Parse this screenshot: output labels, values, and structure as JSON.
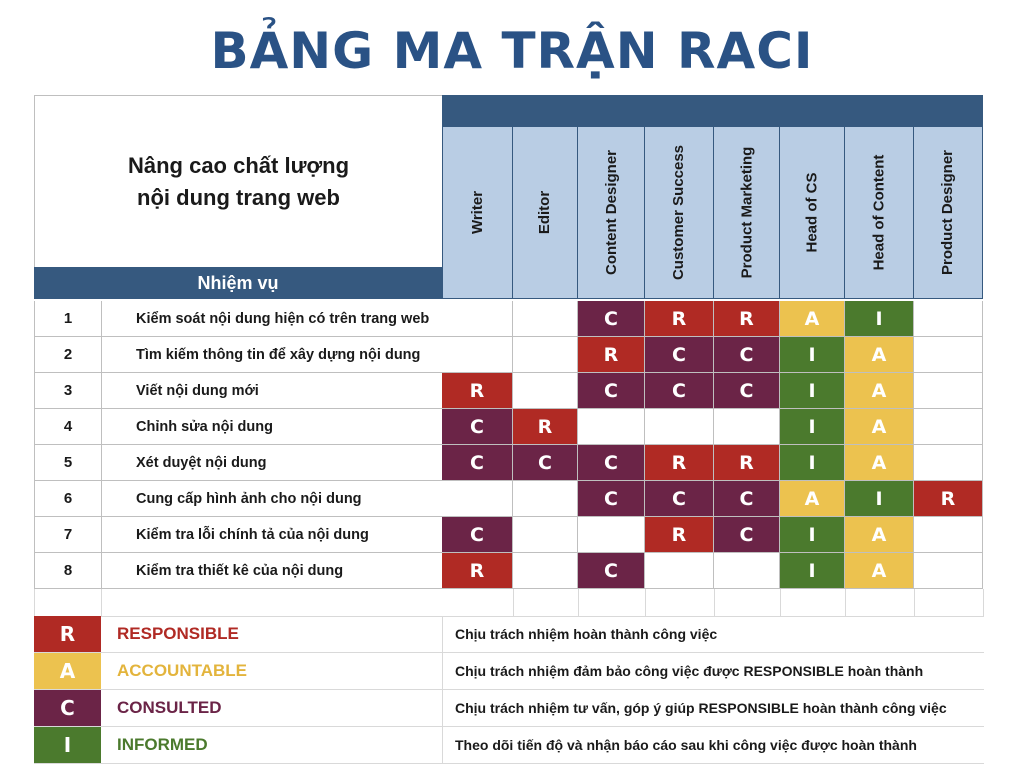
{
  "title": "BẢNG MA TRẬN RACI",
  "project": {
    "line1": "Nâng cao chất lượng",
    "line2": "nội dung trang web"
  },
  "task_header": "Nhiệm vụ",
  "roles": [
    "Writer",
    "Editor",
    "Content Designer",
    "Customer Success",
    "Product Marketing",
    "Head of CS",
    "Head of Content",
    "Product Designer"
  ],
  "tasks": [
    {
      "no": "1",
      "name": "Kiểm soát nội dung hiện có trên trang web",
      "cells": [
        "",
        "",
        "C",
        "R",
        "R",
        "A",
        "I",
        ""
      ]
    },
    {
      "no": "2",
      "name": "Tìm kiếm thông tin để xây dựng nội dung",
      "cells": [
        "",
        "",
        "R",
        "C",
        "C",
        "I",
        "A",
        ""
      ]
    },
    {
      "no": "3",
      "name": "Viết nội dung mới",
      "cells": [
        "R",
        "",
        "C",
        "C",
        "C",
        "I",
        "A",
        ""
      ]
    },
    {
      "no": "4",
      "name": "Chỉnh sửa nội dung",
      "cells": [
        "C",
        "R",
        "",
        "",
        "",
        "I",
        "A",
        ""
      ]
    },
    {
      "no": "5",
      "name": "Xét duyệt nội dung",
      "cells": [
        "C",
        "C",
        "C",
        "R",
        "R",
        "I",
        "A",
        ""
      ]
    },
    {
      "no": "6",
      "name": "Cung cấp hình ảnh cho nội dung",
      "cells": [
        "",
        "",
        "C",
        "C",
        "C",
        "A",
        "I",
        "R"
      ]
    },
    {
      "no": "7",
      "name": "Kiểm tra lỗi chính tả của nội dung",
      "cells": [
        "C",
        "",
        "",
        "R",
        "C",
        "I",
        "A",
        ""
      ]
    },
    {
      "no": "8",
      "name": "Kiểm tra thiết kê của nội dung",
      "cells": [
        "R",
        "",
        "C",
        "",
        "",
        "I",
        "A",
        ""
      ]
    }
  ],
  "legend": [
    {
      "letter": "R",
      "name": "RESPONSIBLE",
      "color": "#b02a24",
      "desc": "Chịu trách nhiệm hoàn thành công việc"
    },
    {
      "letter": "A",
      "name": "ACCOUNTABLE",
      "color": "#ecc24f",
      "desc": "Chịu trách nhiệm đảm bảo công việc được RESPONSIBLE hoàn thành"
    },
    {
      "letter": "C",
      "name": "CONSULTED",
      "color": "#6b2447",
      "desc": "Chịu trách nhiệm tư vấn, góp ý giúp RESPONSIBLE hoàn thành công việc"
    },
    {
      "letter": "I",
      "name": "INFORMED",
      "color": "#4b7a2d",
      "desc": "Theo dõi tiến độ và nhận báo cáo sau khi công việc được hoàn thành"
    }
  ],
  "colors": {
    "header_blue": "#36597f",
    "role_bg": "#b9cde4",
    "title_blue": "#2a5285",
    "R": "#b02a24",
    "A": "#ecc24f",
    "C": "#6b2447",
    "I": "#4b7a2d"
  }
}
